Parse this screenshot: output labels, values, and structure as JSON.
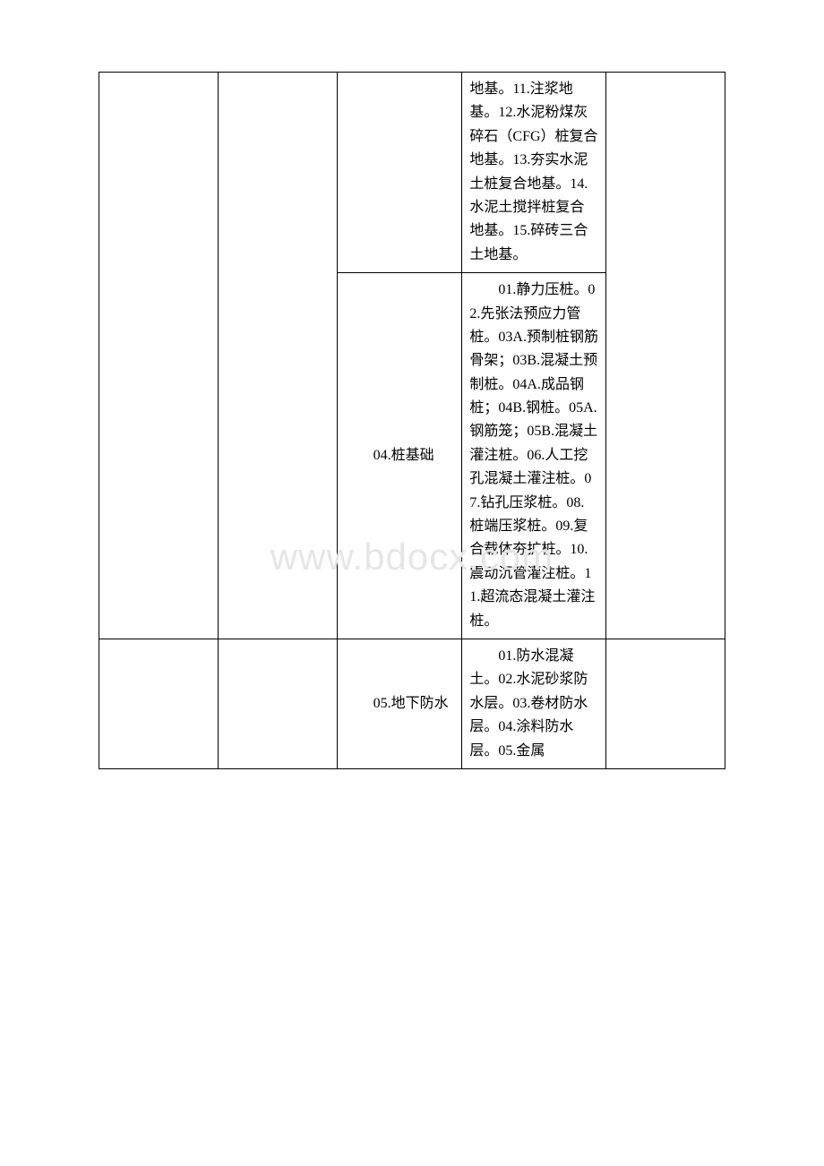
{
  "watermark": "www.bdocx.com",
  "table": {
    "border_color": "#000000",
    "background_color": "#ffffff",
    "text_color": "#000000",
    "font_size_pt": 12,
    "rows": [
      {
        "c3": "",
        "c4": "地基。11.注浆地基。12.水泥粉煤灰碎石（CFG）桩复合地基。13.夯实水泥土桩复合地基。14.水泥土搅拌桩复合地基。15.碎砖三合土地基。"
      },
      {
        "c3": "04.桩基础",
        "c4": "01.静力压桩。02.先张法预应力管桩。03A.预制桩钢筋骨架；03B.混凝土预制桩。04A.成品钢桩；04B.钢桩。05A.钢筋笼；05B.混凝土灌注桩。06.人工挖孔混凝土灌注桩。07.钻孔压浆桩。08.桩端压浆桩。09.复合载体夯扩桩。10.震动沉管灌注桩。11.超流态混凝土灌注桩。"
      },
      {
        "c3": "05.地下防水",
        "c4": "01.防水混凝土。02.水泥砂浆防水层。03.卷材防水层。04.涂料防水层。05.金属"
      }
    ]
  },
  "watermark_color": "#e6e6e6"
}
